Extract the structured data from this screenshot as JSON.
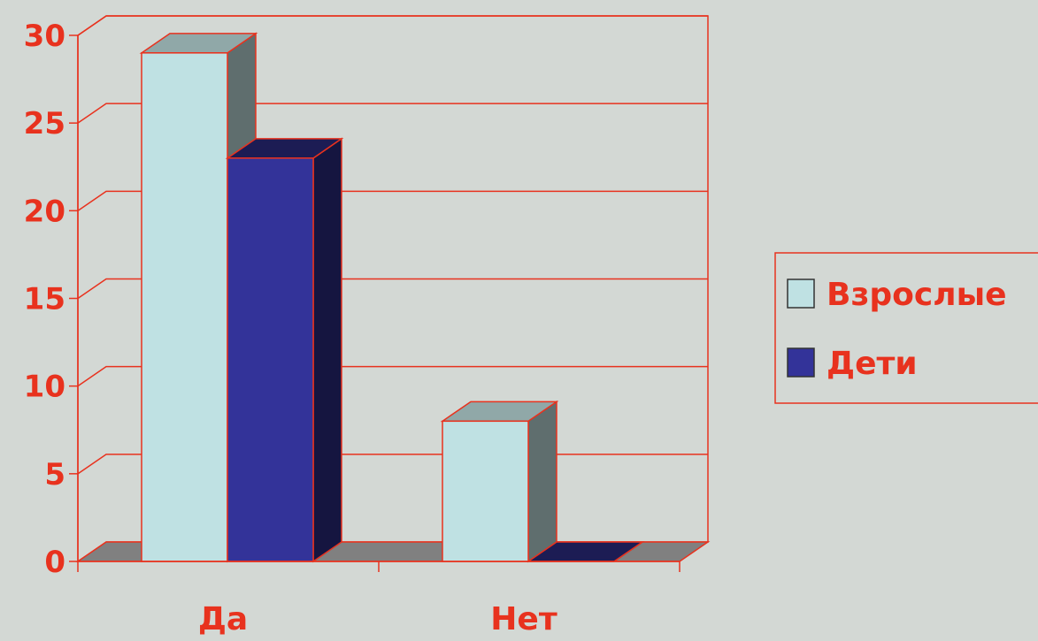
{
  "chart_data": {
    "type": "bar",
    "categories": [
      "Да",
      "Нет"
    ],
    "series": [
      {
        "name": "Взрослые",
        "values": [
          29,
          8
        ],
        "color": "#bfe1e3"
      },
      {
        "name": "Дети",
        "values": [
          23,
          0
        ],
        "color": "#333399"
      }
    ],
    "ylim": [
      0,
      30
    ],
    "yticks": [
      "0",
      "5",
      "10",
      "15",
      "20",
      "25",
      "30"
    ],
    "grid": true,
    "legend": "right",
    "three_d": true,
    "axis_color": "#e8321e",
    "floor_color": "#808080",
    "background": "#d3d8d4"
  }
}
